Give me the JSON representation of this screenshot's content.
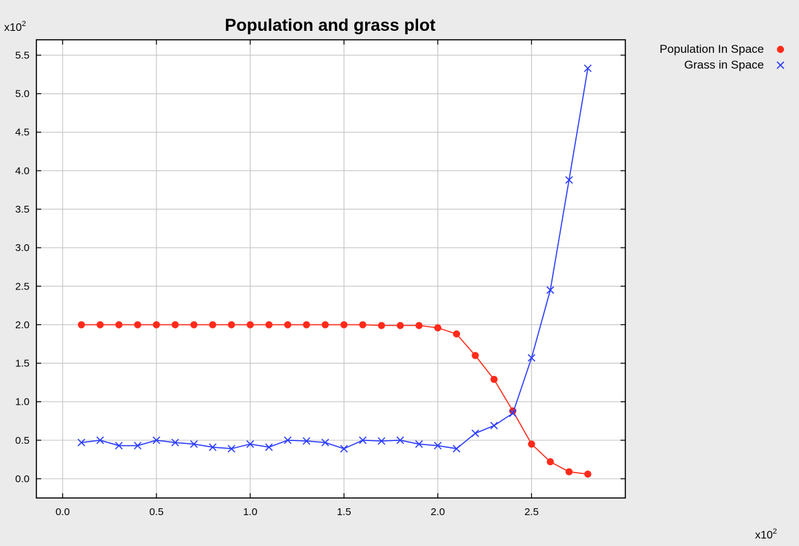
{
  "colors": {
    "background": "#ebebeb",
    "plot_background": "#ffffff",
    "grid": "#c8c8c8",
    "population": "#ff2a1a",
    "grass": "#2a3cff"
  },
  "chart_data": {
    "type": "line",
    "title": "Population and grass plot",
    "xlabel": "",
    "ylabel": "",
    "x_multiplier": {
      "base": "x10",
      "exp": "2"
    },
    "y_multiplier": {
      "base": "x10",
      "exp": "2"
    },
    "xlim": [
      -0.14,
      3.0
    ],
    "ylim": [
      -0.25,
      5.7
    ],
    "x_ticks": [
      0.0,
      0.5,
      1.0,
      1.5,
      2.0,
      2.5
    ],
    "x_tick_labels": [
      "0.0",
      "0.5",
      "1.0",
      "1.5",
      "2.0",
      "2.5"
    ],
    "y_ticks": [
      0.0,
      0.5,
      1.0,
      1.5,
      2.0,
      2.5,
      3.0,
      3.5,
      4.0,
      4.5,
      5.0,
      5.5
    ],
    "y_tick_labels": [
      "0.0",
      "0.5",
      "1.0",
      "1.5",
      "2.0",
      "2.5",
      "3.0",
      "3.5",
      "4.0",
      "4.5",
      "5.0",
      "5.5"
    ],
    "grid": true,
    "legend_position": "outside-top-right",
    "x": [
      0.1,
      0.2,
      0.3,
      0.4,
      0.5,
      0.6,
      0.7,
      0.8,
      0.9,
      1.0,
      1.1,
      1.2,
      1.3,
      1.4,
      1.5,
      1.6,
      1.7,
      1.8,
      1.9,
      2.0,
      2.1,
      2.2,
      2.3,
      2.4,
      2.5,
      2.6,
      2.7,
      2.8
    ],
    "series": [
      {
        "name": "Population In Space",
        "marker": "circle",
        "color": "#ff2a1a",
        "values": [
          2.0,
          2.0,
          2.0,
          2.0,
          2.0,
          2.0,
          2.0,
          2.0,
          2.0,
          2.0,
          2.0,
          2.0,
          2.0,
          2.0,
          2.0,
          2.0,
          1.99,
          1.99,
          1.99,
          1.96,
          1.88,
          1.6,
          1.29,
          0.88,
          0.45,
          0.22,
          0.09,
          0.06
        ]
      },
      {
        "name": "Grass in Space",
        "marker": "x",
        "color": "#2a3cff",
        "values": [
          0.47,
          0.5,
          0.43,
          0.43,
          0.5,
          0.47,
          0.45,
          0.41,
          0.39,
          0.45,
          0.41,
          0.5,
          0.49,
          0.47,
          0.39,
          0.5,
          0.49,
          0.5,
          0.45,
          0.43,
          0.39,
          0.59,
          0.69,
          0.85,
          1.57,
          2.45,
          3.88,
          5.33
        ]
      }
    ]
  }
}
